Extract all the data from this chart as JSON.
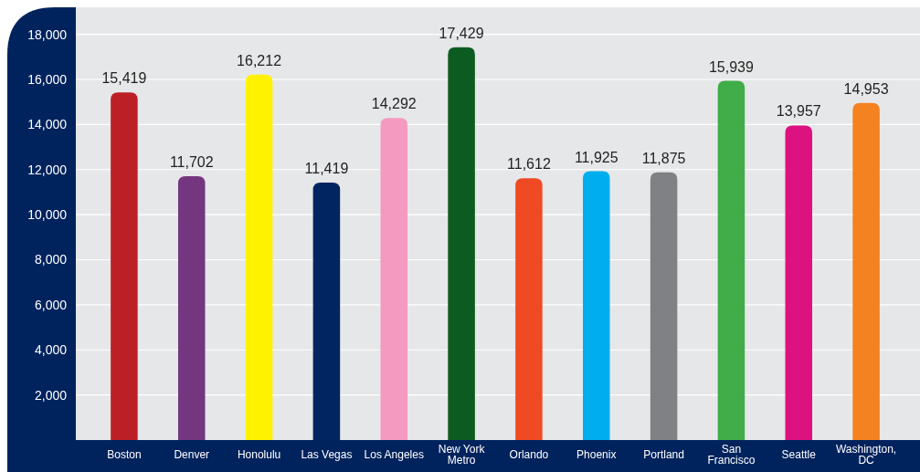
{
  "chart_data": {
    "type": "bar",
    "categories": [
      "Boston",
      "Denver",
      "Honolulu",
      "Las Vegas",
      "Los Angeles",
      "New York Metro",
      "Orlando",
      "Phoenix",
      "Portland",
      "San Francisco",
      "Seattle",
      "Washington, DC"
    ],
    "values": [
      15419,
      11702,
      16212,
      11419,
      14292,
      17429,
      11612,
      11925,
      11875,
      15939,
      13957,
      14953
    ],
    "value_labels": [
      "15,419",
      "11,702",
      "16,212",
      "11,419",
      "14,292",
      "17,429",
      "11,612",
      "11,925",
      "11,875",
      "15,939",
      "13,957",
      "14,953"
    ],
    "colors": [
      "#bc2026",
      "#74377f",
      "#fff200",
      "#002560",
      "#f49ac1",
      "#0c5c22",
      "#f04a24",
      "#00aeef",
      "#808184",
      "#40ad48",
      "#dd1281",
      "#f58220"
    ],
    "ylim": [
      0,
      19200
    ],
    "yticks": [
      {
        "value": 2000,
        "label": "2,000"
      },
      {
        "value": 4000,
        "label": "4,000"
      },
      {
        "value": 6000,
        "label": "6,000"
      },
      {
        "value": 8000,
        "label": "8,000"
      },
      {
        "value": 10000,
        "label": "10,000"
      },
      {
        "value": 12000,
        "label": "12,000"
      },
      {
        "value": 14000,
        "label": "14,000"
      },
      {
        "value": 16000,
        "label": "16,000"
      },
      {
        "value": 18000,
        "label": "18,000"
      }
    ],
    "grid": "y"
  }
}
